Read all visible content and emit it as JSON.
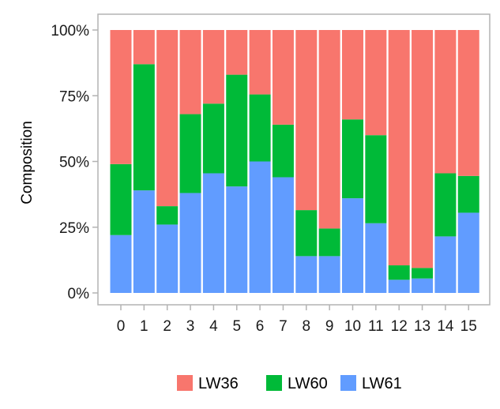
{
  "chart_data": {
    "type": "bar",
    "stacked": true,
    "normalized": true,
    "categories": [
      "0",
      "1",
      "2",
      "3",
      "4",
      "5",
      "6",
      "7",
      "8",
      "9",
      "10",
      "11",
      "12",
      "13",
      "14",
      "15"
    ],
    "series": [
      {
        "name": "LW61",
        "color": "#619CFF",
        "values": [
          22,
          39,
          26,
          38,
          45.5,
          40.5,
          50,
          44,
          14,
          14,
          36,
          26.5,
          5,
          5.5,
          21.5,
          30.5
        ]
      },
      {
        "name": "LW60",
        "color": "#00BA38",
        "values": [
          27,
          48,
          7,
          30,
          26.5,
          42.5,
          25.5,
          20,
          17.5,
          10.5,
          30,
          33.5,
          5.5,
          4,
          24,
          14
        ]
      },
      {
        "name": "LW36",
        "color": "#F8766D",
        "values": [
          51,
          13,
          67,
          32,
          28,
          17,
          24.5,
          36,
          68.5,
          75.5,
          34,
          40,
          89.5,
          90.5,
          54.5,
          55.5
        ]
      }
    ],
    "legend_order": [
      "LW36",
      "LW60",
      "LW61"
    ],
    "legend_position": "bottom",
    "ylabel": "Composition",
    "xlabel": "",
    "ylim": [
      0,
      100
    ],
    "yticks": [
      "0%",
      "25%",
      "50%",
      "75%",
      "100%"
    ],
    "grid": false
  }
}
